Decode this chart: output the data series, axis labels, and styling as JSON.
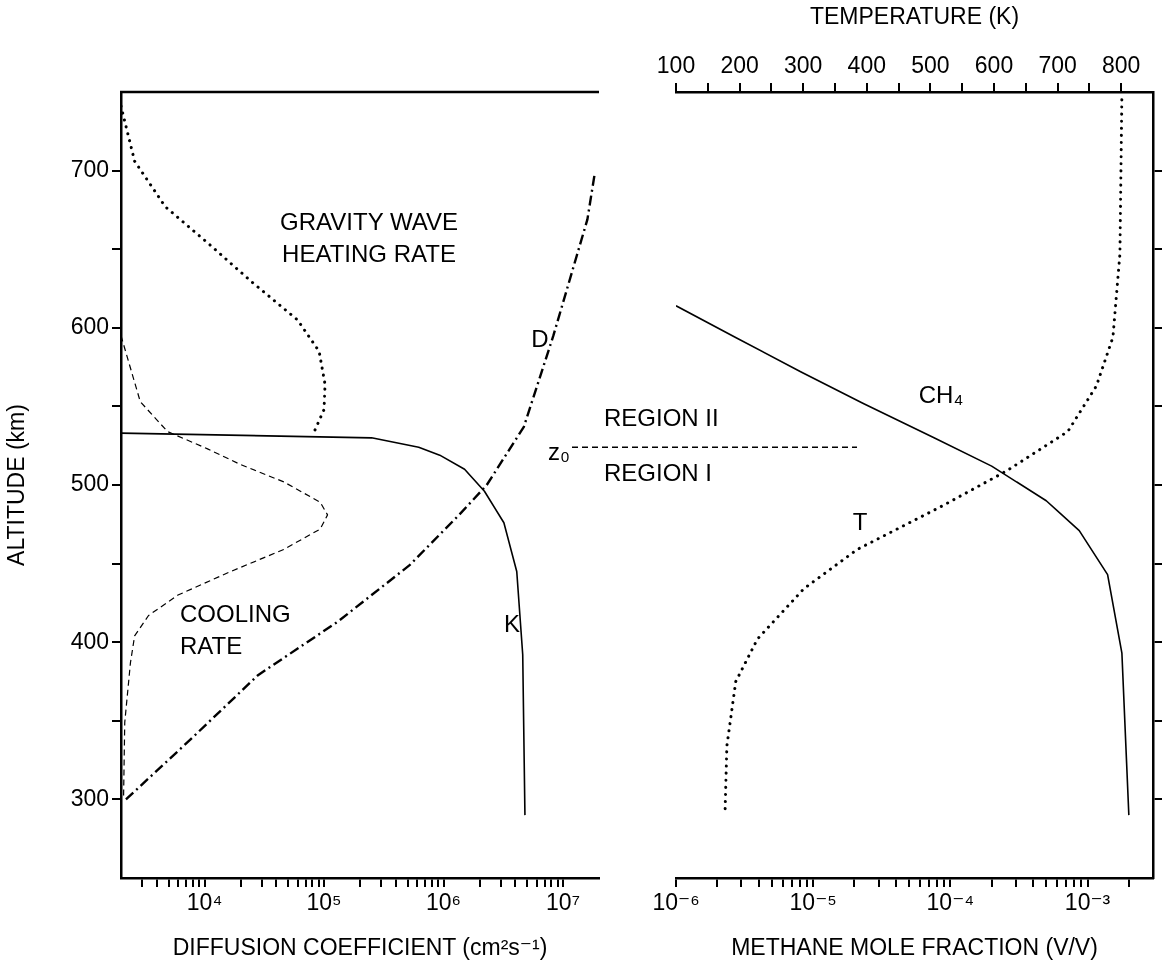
{
  "chart_data": [
    {
      "type": "line",
      "xlabel": "DIFFUSION COEFFICIENT (cm²s⁻¹)",
      "ylabel": "ALTITUDE (km)",
      "log": "x",
      "grid": false,
      "marker": "none",
      "xlim": [
        2000,
        20000000
      ],
      "ylim": [
        250,
        750
      ],
      "xticks": [
        {
          "value": 3000,
          "label": null
        },
        {
          "value": 4000,
          "label": null
        },
        {
          "value": 5000,
          "label": null
        },
        {
          "value": 6000,
          "label": null
        },
        {
          "value": 7000,
          "label": null
        },
        {
          "value": 8000,
          "label": null
        },
        {
          "value": 9000,
          "label": null
        },
        {
          "value": 10000,
          "label": "10⁴"
        },
        {
          "value": 20000,
          "label": null
        },
        {
          "value": 30000,
          "label": null
        },
        {
          "value": 40000,
          "label": null
        },
        {
          "value": 50000,
          "label": null
        },
        {
          "value": 60000,
          "label": null
        },
        {
          "value": 70000,
          "label": null
        },
        {
          "value": 80000,
          "label": null
        },
        {
          "value": 90000,
          "label": null
        },
        {
          "value": 100000,
          "label": "10⁵"
        },
        {
          "value": 200000,
          "label": null
        },
        {
          "value": 300000,
          "label": null
        },
        {
          "value": 400000,
          "label": null
        },
        {
          "value": 500000,
          "label": null
        },
        {
          "value": 600000,
          "label": null
        },
        {
          "value": 700000,
          "label": null
        },
        {
          "value": 800000,
          "label": null
        },
        {
          "value": 900000,
          "label": null
        },
        {
          "value": 1000000,
          "label": "10⁶"
        },
        {
          "value": 2000000,
          "label": null
        },
        {
          "value": 3000000,
          "label": null
        },
        {
          "value": 4000000,
          "label": null
        },
        {
          "value": 5000000,
          "label": null
        },
        {
          "value": 6000000,
          "label": null
        },
        {
          "value": 7000000,
          "label": null
        },
        {
          "value": 8000000,
          "label": null
        },
        {
          "value": 9000000,
          "label": null
        },
        {
          "value": 10000000,
          "label": "10⁷"
        }
      ],
      "yticks": [
        300,
        {
          "value": 350,
          "label": null
        },
        400,
        {
          "value": 450,
          "label": null
        },
        500,
        {
          "value": 550,
          "label": null
        },
        600,
        {
          "value": 650,
          "label": null
        },
        700
      ],
      "series": [
        {
          "name": "D",
          "color": "#000000",
          "line_style": "dashdot",
          "x": [
            2200,
            7600,
            28000,
            130000,
            520000,
            1350000,
            2300000,
            4700000,
            8300000,
            16000000,
            18500000
          ],
          "values": [
            300,
            338,
            379,
            413,
            449,
            481,
            500,
            537,
            595,
            669,
            699
          ]
        },
        {
          "name": "K",
          "color": "#000000",
          "line_style": "solid",
          "x": [
            2000,
            250000,
            620000,
            930000,
            1500000,
            2200000,
            3200000,
            4100000,
            4600000,
            4800000
          ],
          "values": [
            533,
            530,
            524,
            519,
            510,
            496,
            476,
            445,
            392,
            290
          ]
        },
        {
          "name": "COOLING RATE",
          "color": "#000000",
          "line_style": "dashed",
          "x": [
            2000,
            2900,
            4900,
            10600,
            20000,
            46000,
            93000,
            107000,
            93000,
            46000,
            16600,
            6000,
            3400,
            2600,
            2400,
            2150,
            2100
          ],
          "values": [
            595,
            553,
            534,
            523,
            513,
            502,
            489,
            481,
            472,
            459,
            445,
            430,
            417,
            404,
            387,
            349,
            300
          ]
        },
        {
          "name": "GRAVITY WAVE HEATING RATE",
          "color": "#000000",
          "line_style": "dotted",
          "x": [
            2000,
            2600,
            4700,
            11000,
            25000,
            60000,
            91000,
            102000,
            100000,
            84000
          ],
          "values": [
            741,
            706,
            677,
            653,
            629,
            605,
            585,
            564,
            548,
            535
          ]
        }
      ],
      "ref_lines": [
        {
          "axis": "y",
          "value": 524,
          "label": "z₀",
          "line_style": "dashed",
          "color": "#000000"
        }
      ],
      "annotations": [
        "REGION II",
        "REGION I"
      ]
    },
    {
      "type": "line",
      "xlabel": "METHANE MOLE FRACTION (V/V)",
      "x2label": "TEMPERATURE (K)",
      "log": "x",
      "grid": false,
      "marker": "none",
      "tick_labels": "x",
      "xlim": [
        1e-06,
        0.003
      ],
      "x2lim": [
        100,
        850
      ],
      "ylim": [
        250,
        750
      ],
      "xticks": [
        {
          "value": 1e-06,
          "label": "10⁻⁶"
        },
        {
          "value": 2e-06,
          "label": null
        },
        {
          "value": 3e-06,
          "label": null
        },
        {
          "value": 4e-06,
          "label": null
        },
        {
          "value": 5e-06,
          "label": null
        },
        {
          "value": 6e-06,
          "label": null
        },
        {
          "value": 7e-06,
          "label": null
        },
        {
          "value": 8e-06,
          "label": null
        },
        {
          "value": 9e-06,
          "label": null
        },
        {
          "value": 1e-05,
          "label": "10⁻⁵"
        },
        {
          "value": 2e-05,
          "label": null
        },
        {
          "value": 3e-05,
          "label": null
        },
        {
          "value": 4e-05,
          "label": null
        },
        {
          "value": 5e-05,
          "label": null
        },
        {
          "value": 6e-05,
          "label": null
        },
        {
          "value": 7e-05,
          "label": null
        },
        {
          "value": 8e-05,
          "label": null
        },
        {
          "value": 9e-05,
          "label": null
        },
        {
          "value": 0.0001,
          "label": "10⁻⁴"
        },
        {
          "value": 0.0002,
          "label": null
        },
        {
          "value": 0.0003,
          "label": null
        },
        {
          "value": 0.0004,
          "label": null
        },
        {
          "value": 0.0005,
          "label": null
        },
        {
          "value": 0.0006,
          "label": null
        },
        {
          "value": 0.0007,
          "label": null
        },
        {
          "value": 0.0008,
          "label": null
        },
        {
          "value": 0.0009,
          "label": null
        },
        {
          "value": 0.001,
          "label": "10⁻³"
        },
        {
          "value": 0.002,
          "label": null
        }
      ],
      "x2ticks": [
        100,
        {
          "value": 150,
          "label": null
        },
        200,
        {
          "value": 250,
          "label": null
        },
        300,
        {
          "value": 350,
          "label": null
        },
        400,
        {
          "value": 450,
          "label": null
        },
        500,
        {
          "value": 550,
          "label": null
        },
        600,
        {
          "value": 650,
          "label": null
        },
        700,
        {
          "value": 750,
          "label": null
        },
        800
      ],
      "yticks": [
        300,
        {
          "value": 350,
          "label": null
        },
        400,
        {
          "value": 450,
          "label": null
        },
        500,
        {
          "value": 550,
          "label": null
        },
        600,
        {
          "value": 650,
          "label": null
        },
        700
      ],
      "series": [
        {
          "name": "CH₄",
          "color": "#000000",
          "line_style": "solid",
          "x": [
            1e-06,
            2.7e-06,
            8.1e-06,
            2.3e-05,
            7.6e-05,
            0.0002,
            0.0005,
            0.00087,
            0.0014,
            0.00178,
            0.002
          ],
          "values": [
            614,
            594,
            572,
            552,
            530,
            512,
            490,
            471,
            443,
            393,
            290
          ]
        },
        {
          "name": "T",
          "color": "#000000",
          "line_style": "dotted",
          "axis": "x2",
          "x": [
            801,
            798,
            787,
            761,
            716,
            620,
            520,
            385,
            301,
            228,
            194,
            180,
            177
          ],
          "values": [
            745,
            647,
            594,
            563,
            534,
            509,
            487,
            459,
            434,
            402,
            375,
            334,
            290
          ]
        }
      ]
    }
  ]
}
